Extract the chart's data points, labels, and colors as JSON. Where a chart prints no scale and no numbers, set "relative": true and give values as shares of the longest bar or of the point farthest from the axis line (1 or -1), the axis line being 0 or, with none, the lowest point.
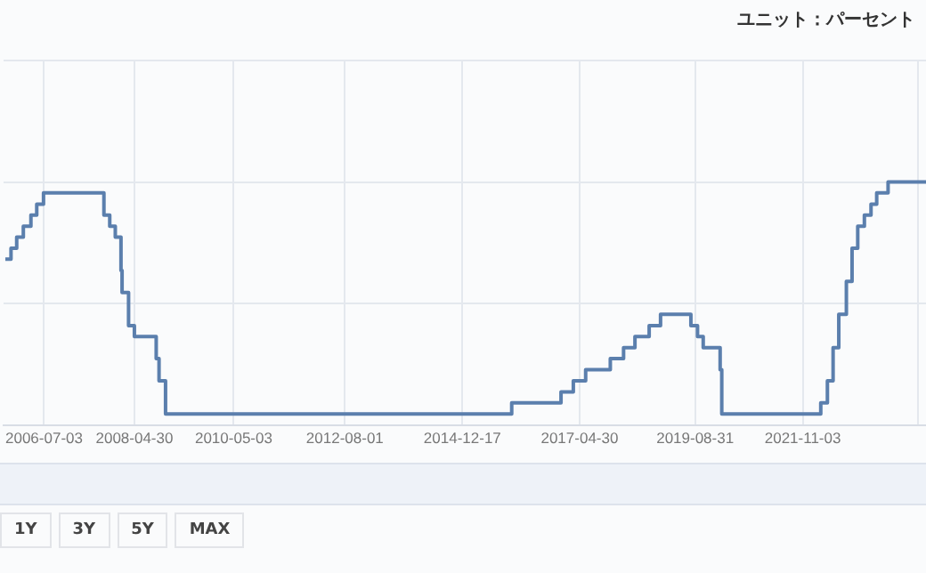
{
  "chart_data": {
    "type": "step",
    "relative": true,
    "x": [
      "2005-09-20",
      "2005-11-01",
      "2005-12-13",
      "2006-01-31",
      "2006-03-28",
      "2006-05-10",
      "2006-06-29",
      "2007-09-18",
      "2007-10-31",
      "2007-12-11",
      "2008-01-22",
      "2008-01-30",
      "2008-03-18",
      "2008-04-30",
      "2008-10-08",
      "2008-10-29",
      "2008-12-16",
      "2015-12-16",
      "2016-12-14",
      "2017-03-15",
      "2017-06-14",
      "2017-12-13",
      "2018-03-21",
      "2018-06-13",
      "2018-09-26",
      "2018-12-19",
      "2019-07-31",
      "2019-09-18",
      "2019-10-30",
      "2020-03-03",
      "2020-03-15",
      "2022-03-16",
      "2022-05-04",
      "2022-06-15",
      "2022-07-27",
      "2022-09-21",
      "2022-11-02",
      "2022-12-14",
      "2023-02-01",
      "2023-03-22",
      "2023-05-03",
      "2023-07-26",
      "2024-05-01"
    ],
    "series": [
      {
        "color": "#5b7fad",
        "values": [
          0.682,
          0.727,
          0.773,
          0.818,
          0.864,
          0.909,
          0.955,
          0.864,
          0.818,
          0.773,
          0.636,
          0.545,
          0.409,
          0.364,
          0.273,
          0.182,
          0.045,
          0.091,
          0.136,
          0.182,
          0.227,
          0.273,
          0.318,
          0.364,
          0.409,
          0.455,
          0.409,
          0.364,
          0.318,
          0.227,
          0.045,
          0.091,
          0.182,
          0.318,
          0.455,
          0.591,
          0.727,
          0.818,
          0.864,
          0.909,
          0.955,
          1,
          1
        ]
      }
    ],
    "xlim": [
      "2005-09-10",
      "2024-05-01"
    ],
    "xticks": [
      "2006-07-03",
      "2008-04-30",
      "2010-05-03",
      "2012-08-01",
      "2014-12-17",
      "2017-04-30",
      "2019-08-31",
      "2021-11-03",
      {
        "value": "2024-03-01",
        "label": null
      }
    ],
    "grid": true,
    "legend": false,
    "annotations": [
      "ユニット：パーセント",
      "1Y",
      "3Y",
      "5Y",
      "MAX"
    ]
  }
}
